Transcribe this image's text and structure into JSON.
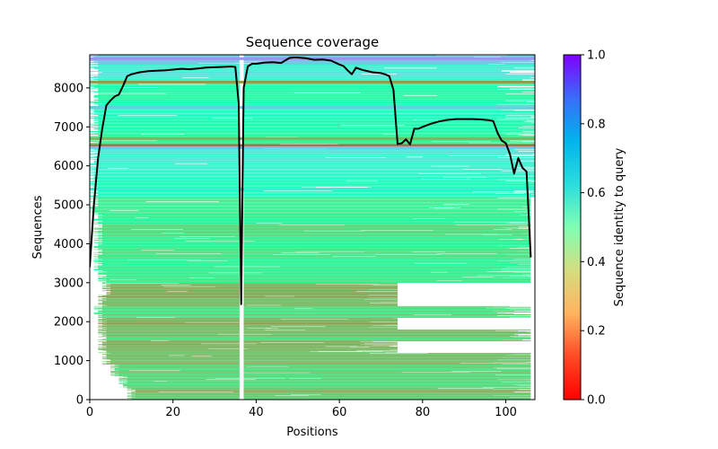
{
  "chart_data": {
    "type": "heatmap",
    "title": "Sequence coverage",
    "xlabel": "Positions",
    "ylabel": "Sequences",
    "xlim": [
      0,
      107
    ],
    "ylim": [
      0,
      8850
    ],
    "xticks": [
      0,
      20,
      40,
      60,
      80,
      100
    ],
    "yticks": [
      0,
      1000,
      2000,
      3000,
      4000,
      5000,
      6000,
      7000,
      8000
    ],
    "grid": false,
    "colorbar": {
      "label": "Sequence identity to query",
      "colormap": "rainbow",
      "range": [
        0.0,
        1.0
      ],
      "ticks": [
        "0.0",
        "0.2",
        "0.4",
        "0.6",
        "0.8",
        "1.0"
      ],
      "placement": "right"
    },
    "gap_column": {
      "start": 36,
      "end": 37
    },
    "bands": [
      {
        "y0": 0,
        "y1": 300,
        "x0": 9,
        "x1": 106,
        "identity": 0.28
      },
      {
        "y0": 300,
        "y1": 600,
        "x0": 7,
        "x1": 106,
        "identity": 0.33
      },
      {
        "y0": 600,
        "y1": 900,
        "x0": 5,
        "x1": 106,
        "identity": 0.31
      },
      {
        "y0": 900,
        "y1": 1200,
        "x0": 3,
        "x1": 106,
        "identity": 0.27
      },
      {
        "y0": 1200,
        "y1": 1500,
        "x0": 2,
        "x1": 74,
        "identity": 0.24
      },
      {
        "y0": 1500,
        "y1": 1800,
        "x0": 2,
        "x1": 106,
        "identity": 0.3
      },
      {
        "y0": 1800,
        "y1": 2100,
        "x0": 2,
        "x1": 74,
        "identity": 0.25
      },
      {
        "y0": 2100,
        "y1": 2400,
        "x0": 1,
        "x1": 106,
        "identity": 0.33
      },
      {
        "y0": 2400,
        "y1": 2700,
        "x0": 2,
        "x1": 74,
        "identity": 0.26
      },
      {
        "y0": 2700,
        "y1": 3000,
        "x0": 3,
        "x1": 74,
        "identity": 0.25
      },
      {
        "y0": 3000,
        "y1": 3300,
        "x0": 2,
        "x1": 106,
        "identity": 0.38
      },
      {
        "y0": 3300,
        "y1": 3600,
        "x0": 1,
        "x1": 106,
        "identity": 0.4
      },
      {
        "y0": 3600,
        "y1": 3900,
        "x0": 1,
        "x1": 106,
        "identity": 0.36
      },
      {
        "y0": 3900,
        "y1": 4200,
        "x0": 1,
        "x1": 106,
        "identity": 0.39
      },
      {
        "y0": 4200,
        "y1": 4500,
        "x0": 1,
        "x1": 106,
        "identity": 0.33
      },
      {
        "y0": 4500,
        "y1": 4800,
        "x0": 1,
        "x1": 106,
        "identity": 0.42
      },
      {
        "y0": 4800,
        "y1": 5200,
        "x0": 0,
        "x1": 106,
        "identity": 0.38
      },
      {
        "y0": 5200,
        "y1": 5600,
        "x0": 0,
        "x1": 107,
        "identity": 0.52
      },
      {
        "y0": 5600,
        "y1": 6000,
        "x0": 0,
        "x1": 107,
        "identity": 0.58
      },
      {
        "y0": 6000,
        "y1": 6500,
        "x0": 0,
        "x1": 107,
        "identity": 0.63
      },
      {
        "y0": 6500,
        "y1": 6800,
        "x0": 0,
        "x1": 107,
        "identity": 0.4
      },
      {
        "y0": 6800,
        "y1": 7200,
        "x0": 0,
        "x1": 107,
        "identity": 0.48
      },
      {
        "y0": 7200,
        "y1": 7600,
        "x0": 0,
        "x1": 107,
        "identity": 0.55
      },
      {
        "y0": 7600,
        "y1": 8100,
        "x0": 0,
        "x1": 107,
        "identity": 0.44
      },
      {
        "y0": 8100,
        "y1": 8600,
        "x0": 0,
        "x1": 107,
        "identity": 0.62
      },
      {
        "y0": 8600,
        "y1": 8850,
        "x0": 0,
        "x1": 107,
        "identity": 0.7
      }
    ],
    "accent_lines": [
      {
        "y": 8750,
        "identity": 0.8
      },
      {
        "y": 8150,
        "identity": 0.2
      },
      {
        "y": 6520,
        "identity": 0.12
      },
      {
        "y": 6700,
        "identity": 0.25
      },
      {
        "y": 6470,
        "identity": 0.72
      },
      {
        "y": 7500,
        "identity": 0.7
      },
      {
        "y": 5400,
        "identity": 0.62
      }
    ],
    "series": [
      {
        "name": "coverage",
        "color": "#000000",
        "x": [
          0,
          1,
          2,
          3,
          4,
          5,
          6,
          7,
          8,
          9,
          10,
          12,
          14,
          16,
          18,
          20,
          22,
          24,
          26,
          28,
          30,
          32,
          34,
          35,
          35.8,
          36.4,
          37,
          38,
          39,
          40,
          42,
          44,
          46,
          48,
          49,
          50,
          52,
          54,
          56,
          58,
          60,
          61,
          62,
          63,
          64,
          65,
          66,
          68,
          70,
          71,
          72,
          73,
          74,
          75,
          76,
          77,
          78,
          79,
          80,
          82,
          84,
          86,
          88,
          90,
          92,
          94,
          96,
          97,
          98,
          99,
          100,
          101,
          102,
          103,
          104,
          105,
          106
        ],
        "values": [
          3400,
          5000,
          6200,
          6950,
          7550,
          7680,
          7780,
          7830,
          8050,
          8300,
          8350,
          8400,
          8430,
          8440,
          8450,
          8470,
          8490,
          8480,
          8500,
          8520,
          8530,
          8540,
          8550,
          8540,
          7600,
          2450,
          8000,
          8550,
          8620,
          8620,
          8650,
          8660,
          8640,
          8770,
          8780,
          8780,
          8760,
          8720,
          8730,
          8700,
          8600,
          8560,
          8450,
          8350,
          8520,
          8480,
          8450,
          8400,
          8380,
          8350,
          8300,
          7950,
          6560,
          6580,
          6680,
          6550,
          6950,
          6950,
          7000,
          7080,
          7140,
          7180,
          7200,
          7200,
          7200,
          7190,
          7170,
          7150,
          6850,
          6650,
          6580,
          6300,
          5800,
          6200,
          5950,
          5850,
          3650
        ]
      }
    ]
  }
}
